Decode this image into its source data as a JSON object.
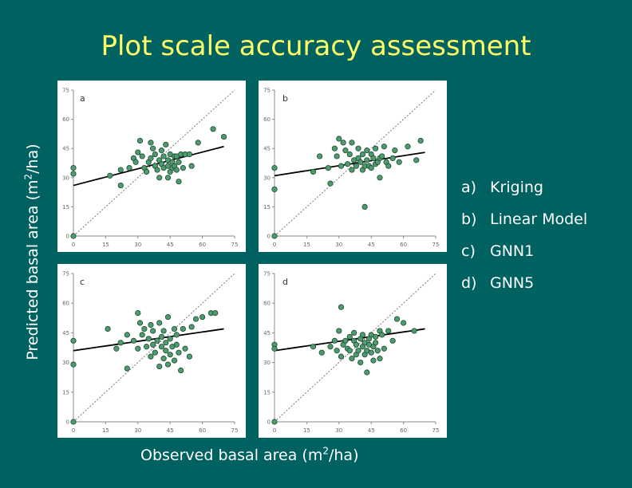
{
  "title": "Plot scale accuracy assessment",
  "ylabel_main": "Predicted basal area (m",
  "ylabel_sup": "2",
  "ylabel_tail": "/ha)",
  "xlabel_main": "Observed basal area (m",
  "xlabel_sup": "2",
  "xlabel_tail": "/ha)",
  "legend": [
    {
      "key": "a)",
      "label": "Kriging"
    },
    {
      "key": "b)",
      "label": "Linear Model"
    },
    {
      "key": "c)",
      "label": "GNN1"
    },
    {
      "key": "d)",
      "label": "GNN5"
    }
  ],
  "colors": {
    "background": "#006161",
    "title": "#ffff66",
    "point": "#4f9a6e",
    "point_edge": "#1b4a2f"
  },
  "chart_data": [
    {
      "type": "scatter",
      "panel_label": "a",
      "xlim": [
        0,
        75
      ],
      "ylim": [
        0,
        75
      ],
      "xticks": [
        "0",
        "15",
        "30",
        "45",
        "60",
        "75"
      ],
      "yticks": [
        "0",
        "15",
        "30",
        "45",
        "60",
        "75"
      ],
      "one_to_one_line": true,
      "fit_line": [
        [
          0,
          26
        ],
        [
          70,
          46
        ]
      ],
      "points": [
        [
          0,
          0
        ],
        [
          0,
          35
        ],
        [
          0,
          32
        ],
        [
          17,
          31
        ],
        [
          22,
          26
        ],
        [
          22,
          34
        ],
        [
          26,
          35
        ],
        [
          28,
          40
        ],
        [
          29,
          38
        ],
        [
          30,
          43
        ],
        [
          31,
          49
        ],
        [
          32,
          41
        ],
        [
          33,
          35
        ],
        [
          34,
          33
        ],
        [
          35,
          38
        ],
        [
          36,
          40
        ],
        [
          36,
          48
        ],
        [
          37,
          45
        ],
        [
          38,
          36
        ],
        [
          38,
          42
        ],
        [
          39,
          34
        ],
        [
          40,
          39
        ],
        [
          40,
          30
        ],
        [
          41,
          44
        ],
        [
          41,
          37
        ],
        [
          42,
          35
        ],
        [
          42,
          41
        ],
        [
          43,
          47
        ],
        [
          44,
          36
        ],
        [
          44,
          39
        ],
        [
          44,
          30
        ],
        [
          45,
          42
        ],
        [
          45,
          33
        ],
        [
          46,
          38
        ],
        [
          46,
          35
        ],
        [
          47,
          41
        ],
        [
          47,
          36
        ],
        [
          48,
          41
        ],
        [
          48,
          34
        ],
        [
          49,
          38
        ],
        [
          49,
          28
        ],
        [
          50,
          42
        ],
        [
          51,
          35
        ],
        [
          52,
          42
        ],
        [
          54,
          42
        ],
        [
          55,
          36
        ],
        [
          58,
          48
        ],
        [
          65,
          55
        ],
        [
          70,
          51
        ]
      ]
    },
    {
      "type": "scatter",
      "panel_label": "b",
      "xlim": [
        0,
        75
      ],
      "ylim": [
        0,
        75
      ],
      "xticks": [
        "0",
        "15",
        "30",
        "45",
        "60",
        "75"
      ],
      "yticks": [
        "0",
        "15",
        "30",
        "45",
        "60",
        "75"
      ],
      "one_to_one_line": true,
      "fit_line": [
        [
          0,
          31
        ],
        [
          70,
          43
        ]
      ],
      "points": [
        [
          0,
          0
        ],
        [
          0,
          35
        ],
        [
          0,
          24
        ],
        [
          18,
          33
        ],
        [
          21,
          41
        ],
        [
          25,
          35
        ],
        [
          26,
          27
        ],
        [
          28,
          45
        ],
        [
          29,
          41
        ],
        [
          30,
          50
        ],
        [
          31,
          36
        ],
        [
          32,
          48
        ],
        [
          33,
          44
        ],
        [
          34,
          37
        ],
        [
          35,
          42
        ],
        [
          36,
          34
        ],
        [
          36,
          48
        ],
        [
          37,
          39
        ],
        [
          38,
          36
        ],
        [
          39,
          40
        ],
        [
          39,
          45
        ],
        [
          40,
          38
        ],
        [
          41,
          34
        ],
        [
          41,
          42
        ],
        [
          42,
          36
        ],
        [
          42,
          15
        ],
        [
          43,
          44
        ],
        [
          43,
          39
        ],
        [
          44,
          36
        ],
        [
          45,
          35
        ],
        [
          45,
          42
        ],
        [
          46,
          40
        ],
        [
          47,
          45
        ],
        [
          47,
          37
        ],
        [
          48,
          38
        ],
        [
          49,
          40
        ],
        [
          49,
          30
        ],
        [
          50,
          41
        ],
        [
          51,
          46
        ],
        [
          52,
          38
        ],
        [
          53,
          36
        ],
        [
          55,
          40
        ],
        [
          56,
          44
        ],
        [
          58,
          38
        ],
        [
          62,
          46
        ],
        [
          66,
          39
        ],
        [
          68,
          49
        ]
      ]
    },
    {
      "type": "scatter",
      "panel_label": "c",
      "xlim": [
        0,
        75
      ],
      "ylim": [
        0,
        75
      ],
      "xticks": [
        "0",
        "15",
        "30",
        "45",
        "60",
        "75"
      ],
      "yticks": [
        "0",
        "15",
        "30",
        "45",
        "60",
        "75"
      ],
      "one_to_one_line": true,
      "fit_line": [
        [
          0,
          36
        ],
        [
          70,
          47
        ]
      ],
      "points": [
        [
          0,
          0
        ],
        [
          0,
          41
        ],
        [
          0,
          29
        ],
        [
          16,
          47
        ],
        [
          20,
          37
        ],
        [
          22,
          40
        ],
        [
          25,
          44
        ],
        [
          25,
          27
        ],
        [
          28,
          41
        ],
        [
          30,
          37
        ],
        [
          30,
          55
        ],
        [
          31,
          50
        ],
        [
          32,
          44
        ],
        [
          33,
          47
        ],
        [
          34,
          38
        ],
        [
          35,
          42
        ],
        [
          36,
          33
        ],
        [
          36,
          49
        ],
        [
          37,
          39
        ],
        [
          37,
          46
        ],
        [
          38,
          35
        ],
        [
          39,
          41
        ],
        [
          40,
          28
        ],
        [
          40,
          50
        ],
        [
          41,
          43
        ],
        [
          41,
          38
        ],
        [
          42,
          32
        ],
        [
          42,
          46
        ],
        [
          43,
          36
        ],
        [
          43,
          40
        ],
        [
          44,
          29
        ],
        [
          44,
          53
        ],
        [
          45,
          42
        ],
        [
          45,
          34
        ],
        [
          46,
          38
        ],
        [
          47,
          47
        ],
        [
          47,
          31
        ],
        [
          48,
          44
        ],
        [
          48,
          39
        ],
        [
          49,
          35
        ],
        [
          50,
          26
        ],
        [
          51,
          47
        ],
        [
          52,
          37
        ],
        [
          54,
          33
        ],
        [
          55,
          48
        ],
        [
          57,
          52
        ],
        [
          60,
          53
        ],
        [
          64,
          55
        ],
        [
          66,
          55
        ]
      ]
    },
    {
      "type": "scatter",
      "panel_label": "d",
      "xlim": [
        0,
        75
      ],
      "ylim": [
        0,
        75
      ],
      "xticks": [
        "0",
        "15",
        "30",
        "45",
        "60",
        "75"
      ],
      "yticks": [
        "0",
        "15",
        "30",
        "45",
        "60",
        "75"
      ],
      "one_to_one_line": true,
      "fit_line": [
        [
          0,
          36
        ],
        [
          70,
          47
        ]
      ],
      "points": [
        [
          0,
          0
        ],
        [
          0,
          39
        ],
        [
          0,
          37
        ],
        [
          18,
          38
        ],
        [
          22,
          35
        ],
        [
          26,
          38
        ],
        [
          28,
          41
        ],
        [
          29,
          36
        ],
        [
          30,
          46
        ],
        [
          31,
          33
        ],
        [
          31,
          58
        ],
        [
          32,
          39
        ],
        [
          33,
          41
        ],
        [
          34,
          37
        ],
        [
          35,
          43
        ],
        [
          35,
          36
        ],
        [
          36,
          32
        ],
        [
          37,
          45
        ],
        [
          37,
          41
        ],
        [
          38,
          39
        ],
        [
          38,
          34
        ],
        [
          39,
          36
        ],
        [
          40,
          42
        ],
        [
          40,
          30
        ],
        [
          41,
          38
        ],
        [
          41,
          44
        ],
        [
          42,
          34
        ],
        [
          42,
          40
        ],
        [
          43,
          36
        ],
        [
          43,
          25
        ],
        [
          44,
          42
        ],
        [
          44,
          39
        ],
        [
          45,
          35
        ],
        [
          45,
          44
        ],
        [
          46,
          38
        ],
        [
          46,
          31
        ],
        [
          47,
          43
        ],
        [
          47,
          40
        ],
        [
          48,
          36
        ],
        [
          49,
          46
        ],
        [
          49,
          32
        ],
        [
          50,
          44
        ],
        [
          51,
          37
        ],
        [
          53,
          46
        ],
        [
          55,
          41
        ],
        [
          57,
          52
        ],
        [
          60,
          50
        ],
        [
          65,
          46
        ]
      ]
    }
  ]
}
